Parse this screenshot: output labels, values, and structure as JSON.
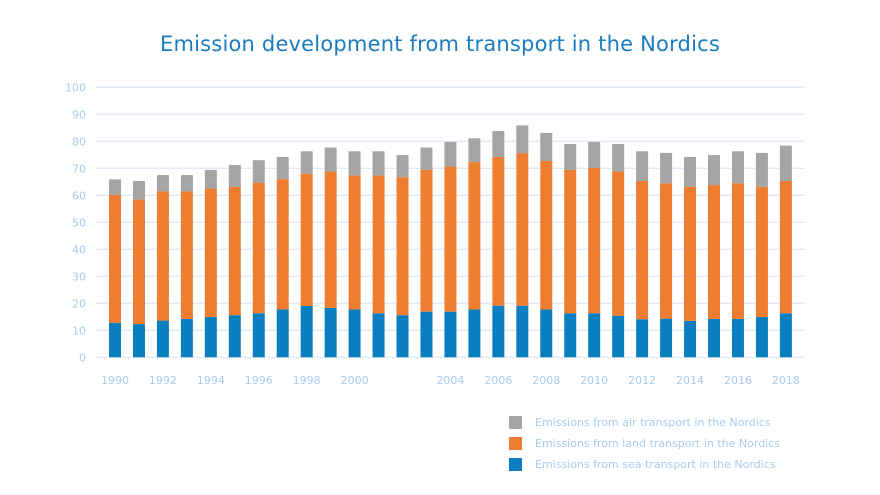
{
  "chart_data": {
    "type": "bar",
    "stacked": true,
    "title": "Emission development from transport in the Nordics",
    "xlabel": "",
    "ylabel": "",
    "ylim": [
      0,
      100
    ],
    "yticks": [
      0,
      10,
      20,
      30,
      40,
      50,
      60,
      70,
      80,
      90,
      100
    ],
    "grid": true,
    "legend_position": "bottom-right",
    "categories": [
      1990,
      1991,
      1992,
      1993,
      1994,
      1995,
      1996,
      1997,
      1998,
      1999,
      2000,
      2001,
      2002,
      2003,
      2004,
      2005,
      2006,
      2007,
      2008,
      2009,
      2010,
      2011,
      2012,
      2013,
      2014,
      2015,
      2016,
      2017,
      2018
    ],
    "xtick_labels": [
      "1990",
      "1992",
      "1994",
      "1996",
      "1998",
      "2000",
      "2004",
      "2006",
      "2008",
      "2010",
      "2012",
      "2014",
      "2016",
      "2018"
    ],
    "series": [
      {
        "name": "Emissions from sea transport in the Nordics",
        "color": "#0a7fc0",
        "values": [
          12.8,
          12.3,
          13.6,
          14.2,
          14.9,
          15.6,
          16.3,
          17.7,
          19.0,
          18.3,
          17.7,
          16.3,
          15.6,
          16.9,
          16.9,
          17.7,
          19.1,
          19.1,
          17.7,
          16.3,
          16.3,
          15.4,
          14.1,
          14.3,
          13.5,
          14.2,
          14.2,
          14.9,
          16.3
        ]
      },
      {
        "name": "Emissions from land transport in the Nordics",
        "color": "#ee7d31",
        "values": [
          47.3,
          46.1,
          47.8,
          47.2,
          47.6,
          47.5,
          48.4,
          48.3,
          49.0,
          50.5,
          49.6,
          51.0,
          51.1,
          52.5,
          53.8,
          54.6,
          55.1,
          56.5,
          55.0,
          53.1,
          53.8,
          53.4,
          51.2,
          50.1,
          49.6,
          49.6,
          50.2,
          48.2,
          49.0
        ]
      },
      {
        "name": "Emissions from air transport in the Nordics",
        "color": "#a5a5a5",
        "values": [
          5.8,
          6.9,
          6.1,
          6.1,
          6.9,
          8.1,
          8.3,
          8.2,
          8.3,
          8.9,
          9.0,
          9.0,
          8.2,
          8.3,
          9.1,
          8.8,
          9.6,
          10.3,
          10.4,
          9.6,
          9.7,
          10.2,
          11.0,
          11.3,
          11.1,
          11.1,
          11.9,
          12.6,
          13.1
        ]
      }
    ]
  },
  "legend_order": [
    2,
    1,
    0
  ]
}
